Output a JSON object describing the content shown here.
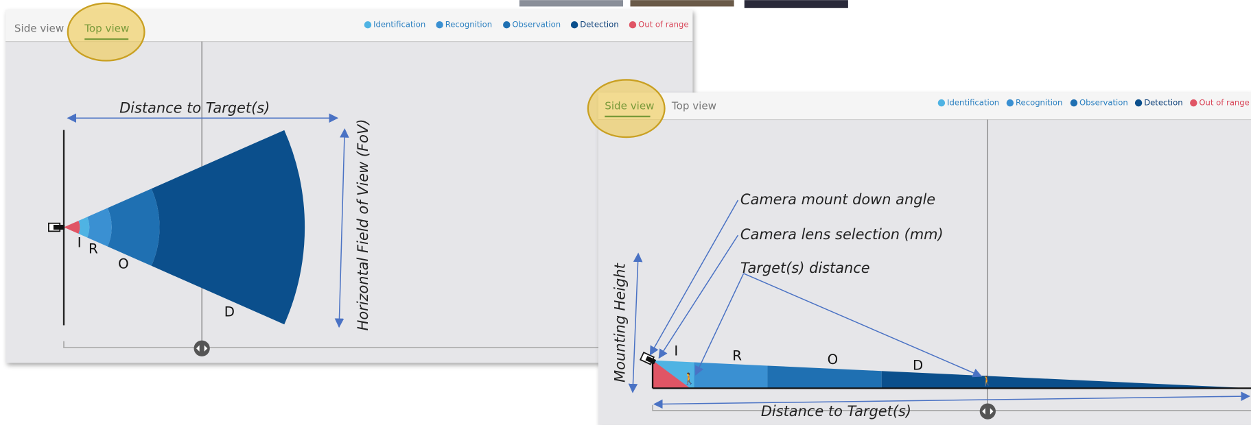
{
  "top_view_panel": {
    "tabs": [
      "Side view",
      "Top view"
    ],
    "legend": [
      "Identification",
      "Recognition",
      "Observation",
      "Detection",
      "Out of range"
    ],
    "zone_labels": [
      "I",
      "R",
      "O",
      "D"
    ],
    "annotations": {
      "distance": "Distance to Target(s)",
      "fov": "Horizontal Field of View (FoV)"
    }
  },
  "side_view_panel": {
    "tabs": [
      "Side view",
      "Top view"
    ],
    "legend": [
      "Identification",
      "Recognition",
      "Observation",
      "Detection",
      "Out of range"
    ],
    "zone_labels": [
      "I",
      "R",
      "O",
      "D"
    ],
    "annotations": {
      "mount_angle": "Camera mount down angle",
      "lens": "Camera lens selection (mm)",
      "target_distance": "Target(s) distance",
      "mounting_height": "Mounting Height",
      "distance": "Distance to Target(s)"
    }
  }
}
